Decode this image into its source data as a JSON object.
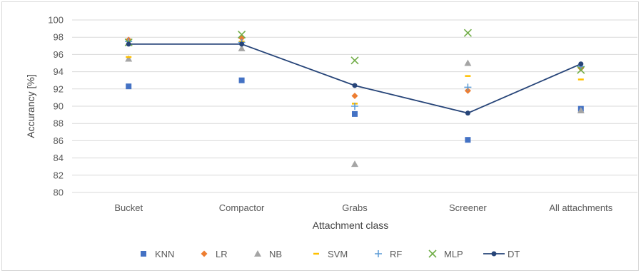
{
  "chart_data": {
    "type": "scatter",
    "title": "",
    "xlabel": "Attachment class",
    "ylabel": "Accurancy [%]",
    "ylim": [
      80,
      100
    ],
    "yticks": [
      80,
      82,
      84,
      86,
      88,
      90,
      92,
      94,
      96,
      98,
      100
    ],
    "categories": [
      "Bucket",
      "Compactor",
      "Grabs",
      "Screener",
      "All attachments"
    ],
    "grid": "horizontal",
    "legend_position": "bottom",
    "series": [
      {
        "name": "KNN",
        "marker": "square",
        "color": "#4472c4",
        "values": [
          92.3,
          93.0,
          89.1,
          86.1,
          89.7
        ]
      },
      {
        "name": "LR",
        "marker": "diamond",
        "color": "#ed7d31",
        "values": [
          97.7,
          97.9,
          91.2,
          91.8,
          94.4
        ]
      },
      {
        "name": "NB",
        "marker": "triangle",
        "color": "#a5a5a5",
        "values": [
          95.5,
          96.7,
          83.3,
          95.0,
          89.5
        ]
      },
      {
        "name": "SVM",
        "marker": "dash",
        "color": "#ffc000",
        "values": [
          95.7,
          97.5,
          90.3,
          93.5,
          93.1
        ]
      },
      {
        "name": "RF",
        "marker": "plus",
        "color": "#5b9bd5",
        "values": [
          97.5,
          97.4,
          90.0,
          92.2,
          94.6
        ]
      },
      {
        "name": "MLP",
        "marker": "x",
        "color": "#70ad47",
        "values": [
          97.4,
          98.3,
          95.3,
          98.5,
          94.2
        ]
      },
      {
        "name": "DT",
        "marker": "circle-line",
        "color": "#264478",
        "values": [
          97.2,
          97.2,
          92.4,
          89.2,
          94.9
        ]
      }
    ]
  }
}
